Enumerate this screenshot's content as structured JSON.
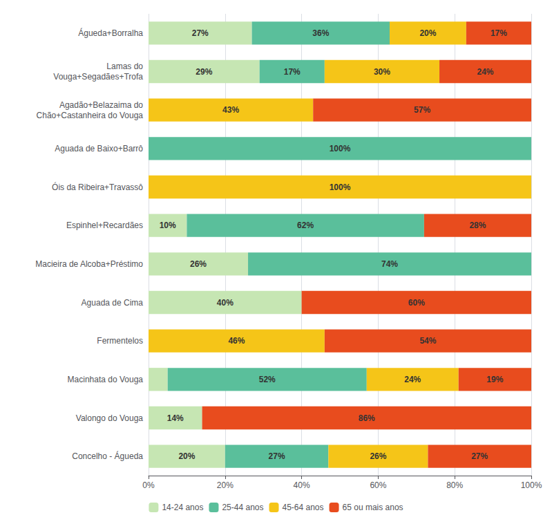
{
  "chart_data": {
    "type": "bar",
    "orientation": "horizontal",
    "stacked": true,
    "categories": [
      "Águeda+Borralha",
      "Lamas do\nVouga+Segadães+Trofa",
      "Agadão+Belazaima do\nChão+Castanheira do Vouga",
      "Aguada de Baixo+Barrô",
      "Óis da Ribeira+Travassô",
      "Espinhel+Recardães",
      "Macieira de Alcoba+Préstimo",
      "Aguada de Cima",
      "Fermentelos",
      "Macinhata do Vouga",
      "Valongo do Vouga",
      "Concelho - Águeda"
    ],
    "series": [
      {
        "name": "14-24 anos",
        "color": "#c6e6b3",
        "values": [
          27,
          29,
          0,
          0,
          0,
          10,
          26,
          40,
          0,
          5,
          14,
          20
        ],
        "value_labels": [
          "27%",
          "29%",
          null,
          null,
          null,
          "10%",
          "26%",
          "40%",
          null,
          null,
          "14%",
          "20%"
        ]
      },
      {
        "name": "25-44 anos",
        "color": "#5abf9b",
        "values": [
          36,
          17,
          0,
          100,
          0,
          62,
          74,
          0,
          0,
          52,
          0,
          27
        ],
        "value_labels": [
          "36%",
          "17%",
          null,
          "100%",
          null,
          "62%",
          "74%",
          null,
          null,
          "52%",
          null,
          "27%"
        ]
      },
      {
        "name": "45-64 anos",
        "color": "#f5c518",
        "values": [
          20,
          30,
          43,
          0,
          100,
          0,
          0,
          0,
          46,
          24,
          0,
          26
        ],
        "value_labels": [
          "20%",
          "30%",
          "43%",
          null,
          "100%",
          null,
          null,
          null,
          "46%",
          "24%",
          null,
          "26%"
        ]
      },
      {
        "name": "65 ou mais anos",
        "color": "#e84c1e",
        "values": [
          17,
          24,
          57,
          0,
          0,
          28,
          0,
          60,
          54,
          19,
          86,
          27
        ],
        "value_labels": [
          "17%",
          "24%",
          "57%",
          null,
          null,
          "28%",
          null,
          "60%",
          "54%",
          "19%",
          "86%",
          "27%"
        ]
      }
    ],
    "xlim": [
      0,
      100
    ],
    "xticks": [
      {
        "value": 0,
        "label": "0%"
      },
      {
        "value": 20,
        "label": "20%"
      },
      {
        "value": 40,
        "label": "40%"
      },
      {
        "value": 60,
        "label": "60%"
      },
      {
        "value": 80,
        "label": "80%"
      },
      {
        "value": 100,
        "label": "100%"
      }
    ],
    "grid": true,
    "legend": "bottom",
    "data_labels": true
  }
}
